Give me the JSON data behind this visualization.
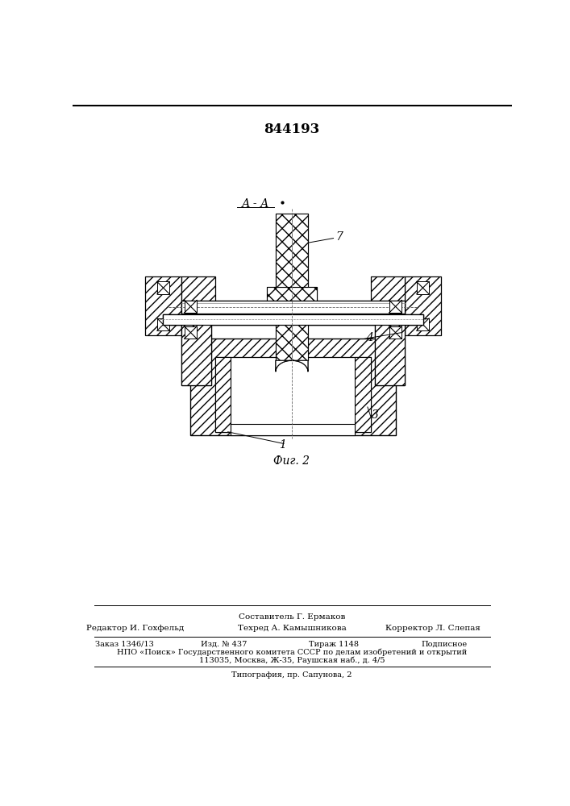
{
  "patent_number": "844193",
  "fig_label": "Фиг. 2",
  "section_label": "А - А",
  "footer_composer": "Составитель Г. Ермаков",
  "footer_editor": "Редактор И. Гохфельд",
  "footer_tech": "Техред А. Камышникова",
  "footer_corrector": "Корректор Л. Слепая",
  "footer_order": "Заказ 1346/13",
  "footer_issue": "Изд. № 437",
  "footer_circulation": "Тираж 1148",
  "footer_sub": "Подписное",
  "footer_npo": "НПО «Поиск» Государственного комитета СССР по делам изобретений и открытий",
  "footer_address": "113035, Москва, Ж-35, Раушская наб., д. 4/5",
  "footer_print": "Типография, пр. Сапунова, 2",
  "bg_color": "#ffffff",
  "lc": "#000000"
}
